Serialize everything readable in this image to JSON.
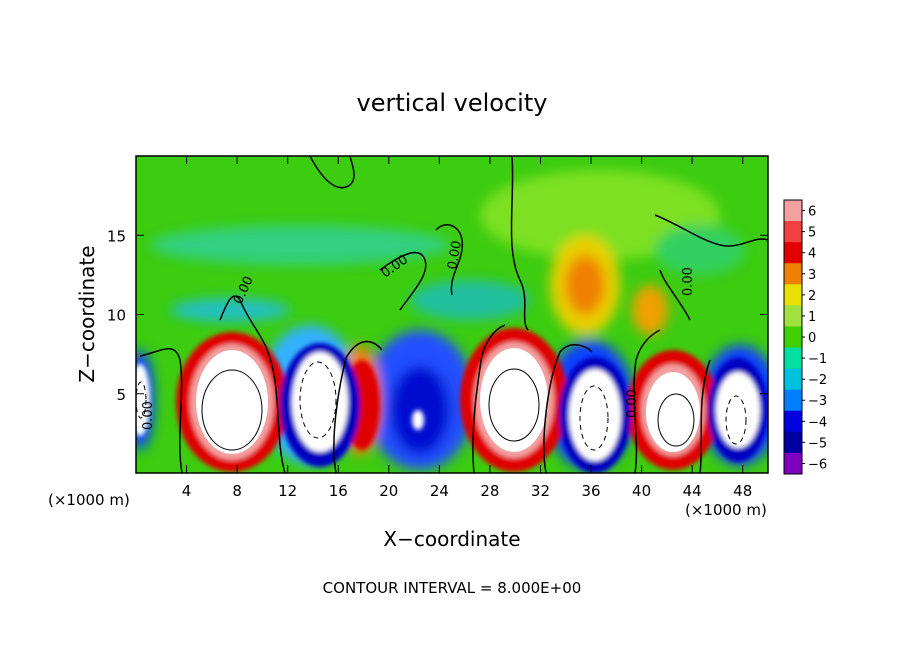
{
  "chart_data": {
    "type": "heatmap",
    "title": "vertical velocity",
    "xlabel": "X−coordinate",
    "ylabel": "Z−coordinate",
    "x_unit": "(×1000 m)",
    "x_unit_right": "(×1000 m)",
    "xlim": [
      0,
      50
    ],
    "ylim": [
      0,
      20
    ],
    "x_ticks": [
      4,
      8,
      12,
      16,
      20,
      24,
      28,
      32,
      36,
      40,
      44,
      48
    ],
    "y_ticks": [
      5,
      10,
      15
    ],
    "colorbar": {
      "levels": [
        6,
        5,
        4,
        3,
        2,
        1,
        0,
        -1,
        -2,
        -3,
        -4,
        -5,
        -6
      ],
      "labels": [
        "6",
        "5",
        "4",
        "3",
        "2",
        "1",
        "0",
        "−1",
        "−2",
        "−3",
        "−4",
        "−5",
        "−6"
      ],
      "colors": [
        "#f4a0a0",
        "#f04040",
        "#e00000",
        "#f08000",
        "#e8e000",
        "#a0e040",
        "#40d000",
        "#00e0a0",
        "#00c0e0",
        "#0080ff",
        "#0000e0",
        "#0000a0",
        "#8000c0"
      ]
    },
    "contour_labels": [
      "0.00",
      "0.00",
      "0.00",
      "0.00",
      "0.00",
      "0.00"
    ],
    "footer": "CONTOUR INTERVAL = 8.000E+00"
  }
}
